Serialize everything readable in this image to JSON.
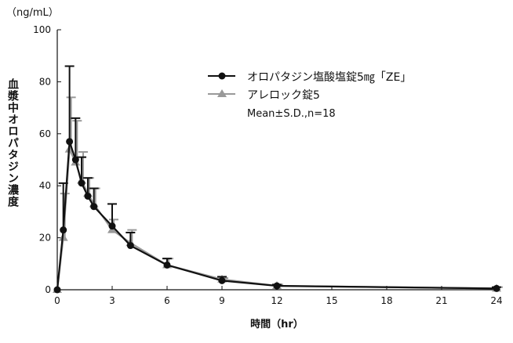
{
  "chart_data": {
    "type": "line",
    "title": "",
    "unit_label": "（ng/mL）",
    "ylabel": "血漿中オロパタジン濃度",
    "xlabel": "時間（hr）",
    "xlim": [
      0,
      24
    ],
    "ylim": [
      0,
      100
    ],
    "xticks": [
      0,
      3,
      6,
      9,
      12,
      15,
      18,
      21,
      24
    ],
    "yticks": [
      0,
      20,
      40,
      60,
      80,
      100
    ],
    "grid": false,
    "legend_position": "top-right",
    "legend_note": "Mean±S.D.,n=18",
    "x": [
      0,
      0.33,
      0.67,
      1,
      1.33,
      1.67,
      2,
      3,
      4,
      6,
      9,
      12,
      24
    ],
    "series": [
      {
        "name": "オロパタジン塩酸塩錠5㎎「ZE」",
        "marker": "circle",
        "color": "#111111",
        "values": [
          0,
          23,
          57,
          50,
          41,
          36,
          32,
          24.5,
          17,
          9.5,
          3.5,
          1.5,
          0.5
        ],
        "sd_upper": [
          0,
          41,
          86,
          66,
          51,
          43,
          39,
          33,
          22,
          12,
          5,
          2,
          1
        ]
      },
      {
        "name": "アレロック錠5",
        "marker": "triangle",
        "color": "#999999",
        "values": [
          0,
          20,
          54,
          49,
          42,
          37,
          33,
          23,
          18,
          9.5,
          4,
          1.5,
          0.5
        ],
        "sd_upper": [
          0,
          37,
          74,
          65,
          53,
          43,
          39,
          27,
          23,
          12,
          4.5,
          2,
          1
        ]
      }
    ]
  }
}
